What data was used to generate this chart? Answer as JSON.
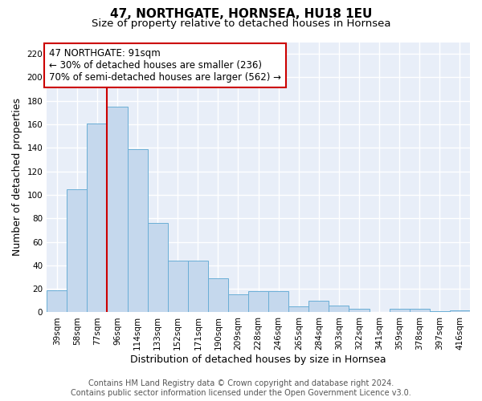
{
  "title": "47, NORTHGATE, HORNSEA, HU18 1EU",
  "subtitle": "Size of property relative to detached houses in Hornsea",
  "xlabel": "Distribution of detached houses by size in Hornsea",
  "ylabel": "Number of detached properties",
  "categories": [
    "39sqm",
    "58sqm",
    "77sqm",
    "96sqm",
    "114sqm",
    "133sqm",
    "152sqm",
    "171sqm",
    "190sqm",
    "209sqm",
    "228sqm",
    "246sqm",
    "265sqm",
    "284sqm",
    "303sqm",
    "322sqm",
    "341sqm",
    "359sqm",
    "378sqm",
    "397sqm",
    "416sqm"
  ],
  "values": [
    19,
    105,
    161,
    175,
    139,
    76,
    44,
    44,
    29,
    15,
    18,
    18,
    5,
    10,
    6,
    3,
    0,
    3,
    3,
    1,
    2
  ],
  "bar_color": "#c5d8ed",
  "bar_edge_color": "#6aaed6",
  "background_color": "#e8eef8",
  "grid_color": "#ffffff",
  "ylim": [
    0,
    230
  ],
  "yticks": [
    0,
    20,
    40,
    60,
    80,
    100,
    120,
    140,
    160,
    180,
    200,
    220
  ],
  "vline_x_index": 3,
  "vline_color": "#cc0000",
  "annotation_text": "47 NORTHGATE: 91sqm\n← 30% of detached houses are smaller (236)\n70% of semi-detached houses are larger (562) →",
  "annotation_box_color": "#ffffff",
  "annotation_box_edge": "#cc0000",
  "footer_text": "Contains HM Land Registry data © Crown copyright and database right 2024.\nContains public sector information licensed under the Open Government Licence v3.0.",
  "title_fontsize": 11,
  "subtitle_fontsize": 9.5,
  "xlabel_fontsize": 9,
  "ylabel_fontsize": 9,
  "tick_fontsize": 7.5,
  "annotation_fontsize": 8.5,
  "footer_fontsize": 7
}
